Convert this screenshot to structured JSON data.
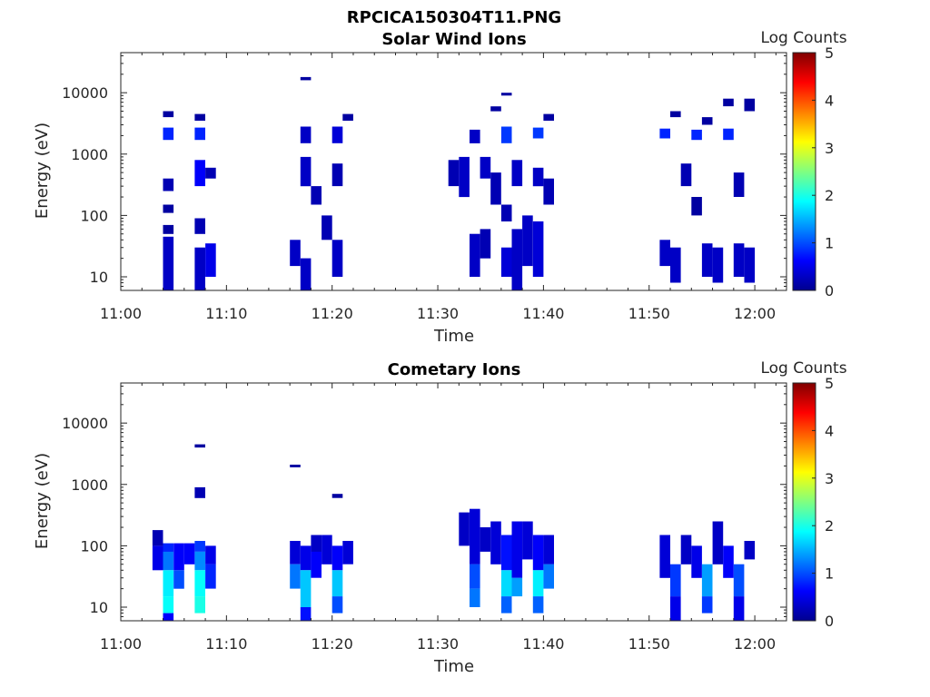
{
  "figure_title": "RPCICA150304T11.PNG",
  "colorbar_gradient": [
    "#00008f",
    "#0000ff",
    "#0080ff",
    "#00ffff",
    "#80ff80",
    "#ffff00",
    "#ff8000",
    "#ff0000",
    "#800000"
  ],
  "chart_data": [
    {
      "type": "heatmap",
      "title": "Solar Wind Ions",
      "xlabel": "Time",
      "ylabel": "Energy (eV)",
      "colorbar_label": "Log Counts",
      "x_ticks": [
        "11:00",
        "11:10",
        "11:20",
        "11:30",
        "11:40",
        "11:50",
        "12:00"
      ],
      "y_ticks": [
        "10",
        "100",
        "1000",
        "10000"
      ],
      "colorbar_ticks": [
        "0",
        "1",
        "2",
        "3",
        "4",
        "5"
      ],
      "xlim": [
        "11:00",
        "12:03"
      ],
      "ylim": [
        6,
        45000
      ],
      "y_scale": "log",
      "clim": [
        0,
        5
      ],
      "cells": [
        [
          "11:04",
          "11:05",
          6,
          45,
          0.3
        ],
        [
          "11:04",
          "11:05",
          1700,
          2700,
          0.8
        ],
        [
          "11:04",
          "11:05",
          250,
          400,
          0.2
        ],
        [
          "11:04",
          "11:05",
          4000,
          5000,
          0.1
        ],
        [
          "11:04",
          "11:05",
          110,
          150,
          0.1
        ],
        [
          "11:04",
          "11:05",
          50,
          70,
          0.1
        ],
        [
          "11:07",
          "11:08",
          6,
          30,
          0.3
        ],
        [
          "11:07",
          "11:08",
          1700,
          2700,
          0.8
        ],
        [
          "11:07",
          "11:08",
          300,
          800,
          0.6
        ],
        [
          "11:07",
          "11:08",
          50,
          90,
          0.2
        ],
        [
          "11:07",
          "11:08",
          3500,
          4500,
          0.1
        ],
        [
          "11:08",
          "11:09",
          10,
          35,
          0.5
        ],
        [
          "11:08",
          "11:09",
          400,
          600,
          0.2
        ],
        [
          "11:16",
          "11:17",
          15,
          40,
          0.3
        ],
        [
          "11:17",
          "11:18",
          6,
          20,
          0.3
        ],
        [
          "11:17",
          "11:18",
          1500,
          2800,
          0.3
        ],
        [
          "11:17",
          "11:18",
          300,
          900,
          0.3
        ],
        [
          "11:17",
          "11:18",
          16000,
          18000,
          0.1
        ],
        [
          "11:18",
          "11:19",
          150,
          300,
          0.2
        ],
        [
          "11:19",
          "11:20",
          40,
          100,
          0.2
        ],
        [
          "11:20",
          "11:21",
          10,
          40,
          0.3
        ],
        [
          "11:20",
          "11:21",
          1500,
          2800,
          0.4
        ],
        [
          "11:20",
          "11:21",
          300,
          700,
          0.2
        ],
        [
          "11:21",
          "11:22",
          3500,
          4500,
          0.1
        ],
        [
          "11:31",
          "11:32",
          300,
          800,
          0.2
        ],
        [
          "11:32",
          "11:33",
          200,
          900,
          0.3
        ],
        [
          "11:33",
          "11:34",
          10,
          50,
          0.3
        ],
        [
          "11:33",
          "11:34",
          1500,
          2500,
          0.3
        ],
        [
          "11:34",
          "11:35",
          20,
          60,
          0.2
        ],
        [
          "11:34",
          "11:35",
          400,
          900,
          0.3
        ],
        [
          "11:35",
          "11:36",
          150,
          500,
          0.2
        ],
        [
          "11:35",
          "11:36",
          5000,
          6000,
          0.1
        ],
        [
          "11:36",
          "11:37",
          10,
          30,
          0.4
        ],
        [
          "11:36",
          "11:37",
          1500,
          2800,
          0.9
        ],
        [
          "11:36",
          "11:37",
          80,
          150,
          0.2
        ],
        [
          "11:36",
          "11:37",
          9000,
          10000,
          0.1
        ],
        [
          "11:37",
          "11:38",
          6,
          60,
          0.3
        ],
        [
          "11:37",
          "11:38",
          300,
          800,
          0.3
        ],
        [
          "11:38",
          "11:39",
          15,
          100,
          0.3
        ],
        [
          "11:39",
          "11:40",
          10,
          80,
          0.4
        ],
        [
          "11:39",
          "11:40",
          1800,
          2700,
          0.9
        ],
        [
          "11:39",
          "11:40",
          300,
          600,
          0.3
        ],
        [
          "11:40",
          "11:41",
          150,
          400,
          0.2
        ],
        [
          "11:40",
          "11:41",
          3500,
          4500,
          0.1
        ],
        [
          "11:51",
          "11:52",
          15,
          40,
          0.3
        ],
        [
          "11:51",
          "11:52",
          1800,
          2600,
          0.8
        ],
        [
          "11:52",
          "11:53",
          8,
          30,
          0.3
        ],
        [
          "11:52",
          "11:53",
          4000,
          5000,
          0.1
        ],
        [
          "11:53",
          "11:54",
          300,
          700,
          0.2
        ],
        [
          "11:54",
          "11:55",
          1700,
          2500,
          0.8
        ],
        [
          "11:54",
          "11:55",
          100,
          200,
          0.1
        ],
        [
          "11:55",
          "11:56",
          10,
          35,
          0.3
        ],
        [
          "11:55",
          "11:56",
          3000,
          4000,
          0.1
        ],
        [
          "11:56",
          "11:57",
          8,
          30,
          0.3
        ],
        [
          "11:57",
          "11:58",
          1700,
          2600,
          0.8
        ],
        [
          "11:57",
          "11:58",
          6000,
          8000,
          0.1
        ],
        [
          "11:58",
          "11:59",
          10,
          35,
          0.3
        ],
        [
          "11:58",
          "11:59",
          200,
          500,
          0.2
        ],
        [
          "11:59",
          "12:00",
          8,
          30,
          0.3
        ],
        [
          "11:59",
          "12:00",
          5000,
          8000,
          0.1
        ]
      ]
    },
    {
      "type": "heatmap",
      "title": "Cometary Ions",
      "xlabel": "Time",
      "ylabel": "Energy (eV)",
      "colorbar_label": "Log Counts",
      "x_ticks": [
        "11:00",
        "11:10",
        "11:20",
        "11:30",
        "11:40",
        "11:50",
        "12:00"
      ],
      "y_ticks": [
        "10",
        "100",
        "1000",
        "10000"
      ],
      "colorbar_ticks": [
        "0",
        "1",
        "2",
        "3",
        "4",
        "5"
      ],
      "xlim": [
        "11:00",
        "12:03"
      ],
      "ylim": [
        6,
        45000
      ],
      "y_scale": "log",
      "clim": [
        0,
        5
      ],
      "cells": [
        [
          "11:03",
          "11:04",
          40,
          100,
          0.5
        ],
        [
          "11:03",
          "11:04",
          100,
          180,
          0.2
        ],
        [
          "11:04",
          "11:05",
          80,
          110,
          0.8
        ],
        [
          "11:04",
          "11:05",
          40,
          80,
          1.2
        ],
        [
          "11:04",
          "11:05",
          15,
          40,
          1.8
        ],
        [
          "11:04",
          "11:05",
          8,
          15,
          1.9
        ],
        [
          "11:04",
          "11:05",
          6,
          8,
          0.6
        ],
        [
          "11:05",
          "11:06",
          40,
          110,
          0.6
        ],
        [
          "11:05",
          "11:06",
          20,
          40,
          1.0
        ],
        [
          "11:06",
          "11:07",
          50,
          110,
          0.6
        ],
        [
          "11:07",
          "11:08",
          80,
          120,
          0.9
        ],
        [
          "11:07",
          "11:08",
          40,
          80,
          1.3
        ],
        [
          "11:07",
          "11:08",
          15,
          40,
          1.9
        ],
        [
          "11:07",
          "11:08",
          8,
          15,
          2.0
        ],
        [
          "11:07",
          "11:08",
          600,
          900,
          0.2
        ],
        [
          "11:07",
          "11:08",
          4000,
          4500,
          0.1
        ],
        [
          "11:08",
          "11:09",
          50,
          100,
          0.5
        ],
        [
          "11:08",
          "11:09",
          20,
          50,
          0.8
        ],
        [
          "11:16",
          "11:17",
          50,
          120,
          0.4
        ],
        [
          "11:16",
          "11:17",
          20,
          50,
          1.2
        ],
        [
          "11:17",
          "11:18",
          40,
          100,
          0.5
        ],
        [
          "11:17",
          "11:18",
          10,
          40,
          1.6
        ],
        [
          "11:17",
          "11:18",
          6,
          10,
          0.7
        ],
        [
          "11:18",
          "11:19",
          80,
          150,
          0.3
        ],
        [
          "11:18",
          "11:19",
          30,
          80,
          0.6
        ],
        [
          "11:19",
          "11:20",
          50,
          150,
          0.4
        ],
        [
          "11:20",
          "11:21",
          40,
          100,
          0.6
        ],
        [
          "11:20",
          "11:21",
          15,
          40,
          1.6
        ],
        [
          "11:20",
          "11:21",
          8,
          15,
          1.0
        ],
        [
          "11:21",
          "11:22",
          50,
          120,
          0.4
        ],
        [
          "11:16",
          "11:17",
          1900,
          2100,
          0.1
        ],
        [
          "11:20",
          "11:21",
          600,
          700,
          0.1
        ],
        [
          "11:32",
          "11:33",
          100,
          350,
          0.3
        ],
        [
          "11:33",
          "11:34",
          50,
          400,
          0.4
        ],
        [
          "11:33",
          "11:34",
          20,
          50,
          1.0
        ],
        [
          "11:33",
          "11:34",
          10,
          20,
          1.2
        ],
        [
          "11:34",
          "11:35",
          80,
          200,
          0.3
        ],
        [
          "11:35",
          "11:36",
          50,
          250,
          0.4
        ],
        [
          "11:36",
          "11:37",
          40,
          150,
          0.7
        ],
        [
          "11:36",
          "11:37",
          15,
          40,
          1.7
        ],
        [
          "11:36",
          "11:37",
          8,
          15,
          1.1
        ],
        [
          "11:37",
          "11:38",
          30,
          250,
          0.5
        ],
        [
          "11:37",
          "11:38",
          15,
          30,
          1.4
        ],
        [
          "11:38",
          "11:39",
          60,
          250,
          0.4
        ],
        [
          "11:39",
          "11:40",
          40,
          150,
          0.6
        ],
        [
          "11:39",
          "11:40",
          15,
          40,
          1.8
        ],
        [
          "11:39",
          "11:40",
          8,
          15,
          1.1
        ],
        [
          "11:40",
          "11:41",
          50,
          150,
          0.4
        ],
        [
          "11:40",
          "11:41",
          20,
          50,
          1.2
        ],
        [
          "11:51",
          "11:52",
          30,
          150,
          0.4
        ],
        [
          "11:52",
          "11:53",
          15,
          50,
          0.9
        ],
        [
          "11:52",
          "11:53",
          6,
          15,
          0.5
        ],
        [
          "11:53",
          "11:54",
          50,
          150,
          0.3
        ],
        [
          "11:54",
          "11:55",
          30,
          100,
          0.5
        ],
        [
          "11:55",
          "11:56",
          15,
          50,
          1.4
        ],
        [
          "11:55",
          "11:56",
          8,
          15,
          0.9
        ],
        [
          "11:56",
          "11:57",
          50,
          250,
          0.3
        ],
        [
          "11:57",
          "11:58",
          30,
          100,
          0.6
        ],
        [
          "11:58",
          "11:59",
          15,
          50,
          1.0
        ],
        [
          "11:58",
          "11:59",
          6,
          15,
          0.5
        ],
        [
          "11:59",
          "12:00",
          60,
          120,
          0.3
        ]
      ]
    }
  ]
}
